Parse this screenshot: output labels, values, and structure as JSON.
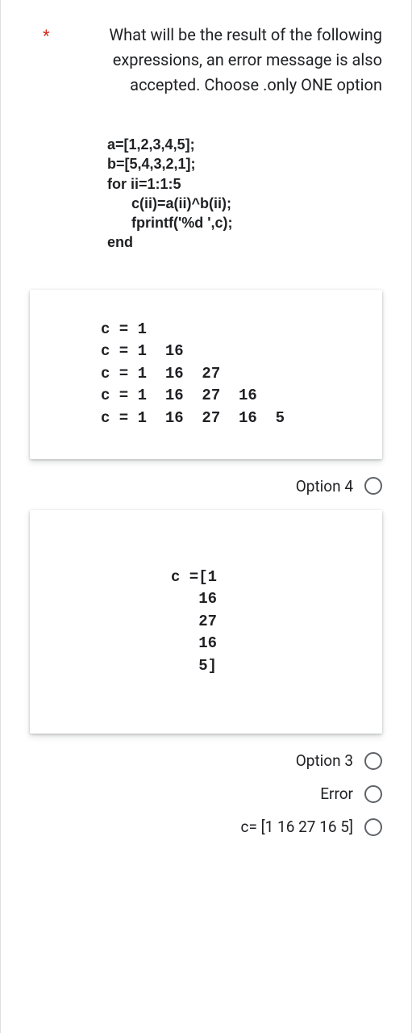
{
  "required_marker": "*",
  "question": "What will be the result of the following expressions, an error message is also accepted. Choose .only ONE option",
  "code": "a=[1,2,3,4,5];\nb=[5,4,3,2,1];\nfor ii=1:1:5\n      c(ii)=a(ii)^b(ii);\n      fprintf('%d ',c);\nend",
  "card_option4": "c = 1\nc = 1  16\nc = 1  16  27\nc = 1  16  27  16\nc = 1  16  27  16  5",
  "option4_label": "Option 4",
  "card_option3": "c =[1\n   16\n   27\n   16\n   5]",
  "option3_label": "Option 3",
  "option_error_label": "Error",
  "option_inline_label": "c= [1 16 27 16 5]"
}
